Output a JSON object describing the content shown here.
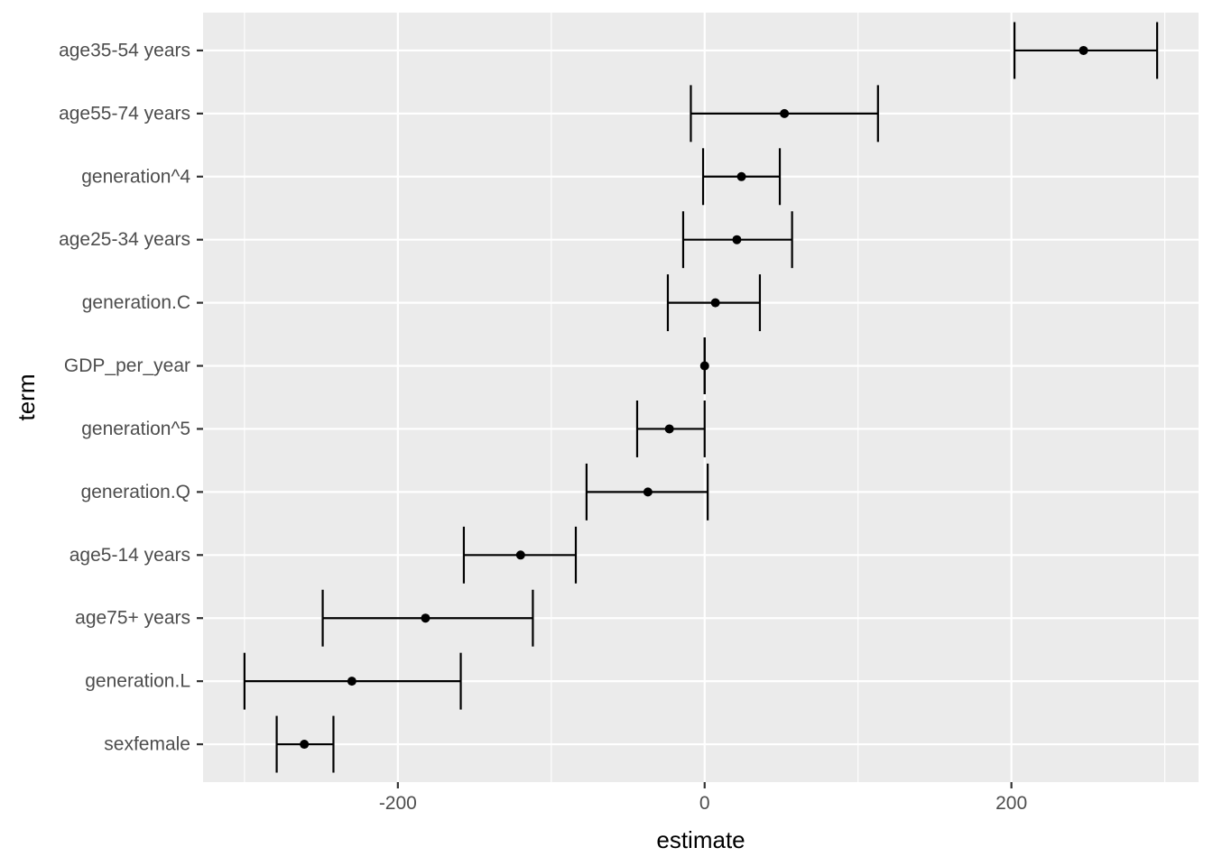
{
  "chart_data": {
    "type": "pointrange",
    "orientation": "horizontal",
    "xlabel": "estimate",
    "ylabel": "term",
    "xlim": [
      -327,
      322
    ],
    "x_ticks": [
      -200,
      0,
      200
    ],
    "x_tick_labels": [
      "-200",
      "0",
      "200"
    ],
    "grid": true,
    "categories": [
      "age35-54 years",
      "age55-74 years",
      "generation^4",
      "age25-34 years",
      "generation.C",
      "GDP_per_year",
      "generation^5",
      "generation.Q",
      "age5-14 years",
      "age75+ years",
      "generation.L",
      "sexfemale"
    ],
    "series": [
      {
        "estimates": [
          247,
          52,
          24,
          21,
          7,
          0,
          -23,
          -37,
          -120,
          -182,
          -230,
          -261
        ],
        "conf_low": [
          202,
          -9,
          -1,
          -14,
          -24,
          0,
          -44,
          -77,
          -157,
          -249,
          -300,
          -279
        ],
        "conf_high": [
          295,
          113,
          49,
          57,
          36,
          0,
          0,
          2,
          -84,
          -112,
          -159,
          -242
        ]
      }
    ]
  }
}
